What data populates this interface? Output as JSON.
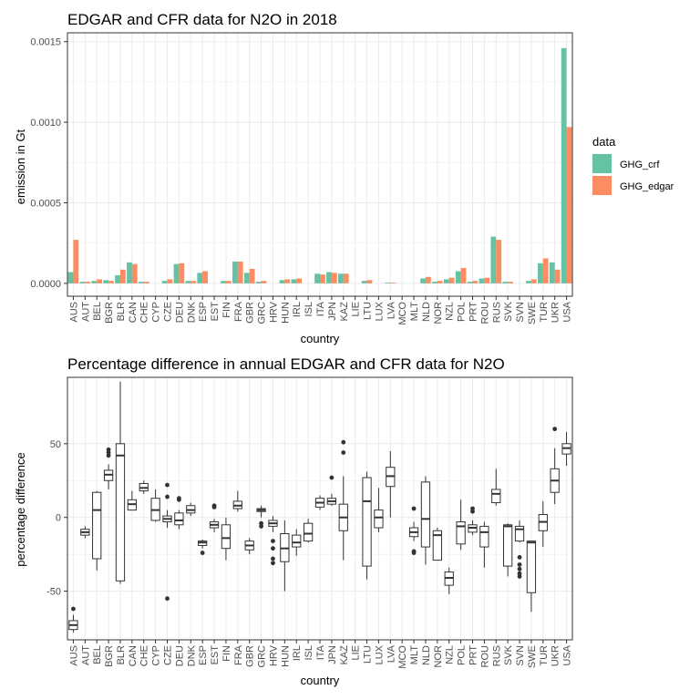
{
  "colors": {
    "ghg_crf": "#66c2a5",
    "ghg_edgar": "#fc8d62",
    "grid": "#ebebeb",
    "panel_border": "#333333",
    "box_stroke": "#333333"
  },
  "chart_data": [
    {
      "type": "bar",
      "title": "EDGAR and CFR data for N2O in 2018",
      "xlabel": "country",
      "ylabel": "emission in Gt",
      "ylim": [
        -8e-05,
        0.001555
      ],
      "yticks": [
        0.0,
        0.0005,
        0.001,
        0.0015
      ],
      "ytick_labels": [
        "0.0000",
        "0.0005",
        "0.0010",
        "0.0015"
      ],
      "grid": true,
      "legend_position": "right",
      "legend_title": "data",
      "categories": [
        "AUS",
        "AUT",
        "BEL",
        "BGR",
        "BLR",
        "CAN",
        "CHE",
        "CYP",
        "CZE",
        "DEU",
        "DNK",
        "ESP",
        "EST",
        "FIN",
        "FRA",
        "GBR",
        "GRC",
        "HRV",
        "HUN",
        "IRL",
        "ISL",
        "ITA",
        "JPN",
        "KAZ",
        "LIE",
        "LTU",
        "LUX",
        "LVA",
        "MCO",
        "MLT",
        "NLD",
        "NOR",
        "NZL",
        "POL",
        "PRT",
        "ROU",
        "RUS",
        "SVK",
        "SVN",
        "SWE",
        "TUR",
        "UKR",
        "USA"
      ],
      "series": [
        {
          "name": "GHG_crf",
          "color_key": "ghg_crf",
          "values": [
            7e-05,
            1e-05,
            1.5e-05,
            2e-05,
            5e-05,
            0.00013,
            1e-05,
            0.0,
            1.5e-05,
            0.00012,
            1.5e-05,
            6.5e-05,
            0.0,
            1.5e-05,
            0.000135,
            6.5e-05,
            1e-05,
            0.0,
            2e-05,
            2.5e-05,
            0.0,
            6e-05,
            7e-05,
            6e-05,
            0.0,
            1.5e-05,
            0.0,
            5e-06,
            0.0,
            0.0,
            3e-05,
            1e-05,
            2.5e-05,
            7.5e-05,
            1e-05,
            3e-05,
            0.00029,
            1e-05,
            0.0,
            1.5e-05,
            0.000125,
            0.00013,
            0.00146
          ]
        },
        {
          "name": "GHG_edgar",
          "color_key": "ghg_edgar",
          "values": [
            0.00027,
            1e-05,
            2.5e-05,
            1.5e-05,
            8.5e-05,
            0.00012,
            1e-05,
            0.0,
            2.5e-05,
            0.000125,
            1.5e-05,
            7.5e-05,
            0.0,
            1.5e-05,
            0.000135,
            9e-05,
            1.5e-05,
            0.0,
            2.5e-05,
            3e-05,
            0.0,
            5.5e-05,
            6.5e-05,
            6e-05,
            0.0,
            2e-05,
            0.0,
            5e-06,
            0.0,
            0.0,
            4e-05,
            1.5e-05,
            3.5e-05,
            9.5e-05,
            1.5e-05,
            3.5e-05,
            0.00027,
            1e-05,
            0.0,
            2.5e-05,
            0.000155,
            8.5e-05,
            0.00097
          ]
        }
      ]
    },
    {
      "type": "box",
      "title": "Percentage difference in annual EDGAR and CFR data for N2O",
      "xlabel": "country",
      "ylabel": "percentage difference",
      "ylim": [
        -83,
        95
      ],
      "yticks": [
        -50,
        0,
        50
      ],
      "ytick_labels": [
        "-50",
        "0",
        "50"
      ],
      "grid": true,
      "categories": [
        "AUS",
        "AUT",
        "BEL",
        "BGR",
        "BLR",
        "CAN",
        "CHE",
        "CYP",
        "CZE",
        "DEU",
        "DNK",
        "ESP",
        "EST",
        "FIN",
        "FRA",
        "GBR",
        "GRC",
        "HRV",
        "HUN",
        "IRL",
        "ISL",
        "ITA",
        "JPN",
        "KAZ",
        "LIE",
        "LTU",
        "LUX",
        "LVA",
        "MCO",
        "MLT",
        "NLD",
        "NOR",
        "NZL",
        "POL",
        "PRT",
        "ROU",
        "RUS",
        "SVK",
        "SVN",
        "SWE",
        "TUR",
        "UKR",
        "USA"
      ],
      "boxes": [
        {
          "min": -78,
          "q1": -76,
          "median": -73,
          "q3": -70,
          "max": -66,
          "outliers": [
            -62
          ]
        },
        {
          "min": -14,
          "q1": -12,
          "median": -10,
          "q3": -8,
          "max": -6,
          "outliers": []
        },
        {
          "min": -36,
          "q1": -28,
          "median": 5,
          "q3": 17,
          "max": 18,
          "outliers": []
        },
        {
          "min": 19,
          "q1": 25,
          "median": 29,
          "q3": 32,
          "max": 36,
          "outliers": [
            42,
            44,
            46
          ]
        },
        {
          "min": -45,
          "q1": -43,
          "median": 42,
          "q3": 50,
          "max": 92,
          "outliers": []
        },
        {
          "min": 5,
          "q1": 5,
          "median": 9,
          "q3": 12,
          "max": 18,
          "outliers": []
        },
        {
          "min": 16,
          "q1": 18,
          "median": 20,
          "q3": 23,
          "max": 25,
          "outliers": []
        },
        {
          "min": -3,
          "q1": -2,
          "median": 5,
          "q3": 13,
          "max": 19,
          "outliers": []
        },
        {
          "min": -7,
          "q1": -3,
          "median": -1,
          "q3": 1,
          "max": 5,
          "outliers": [
            -55,
            22,
            14
          ]
        },
        {
          "min": -8,
          "q1": -5,
          "median": -2,
          "q3": 3,
          "max": 5,
          "outliers": [
            12,
            13
          ]
        },
        {
          "min": 1,
          "q1": 3,
          "median": 5,
          "q3": 8,
          "max": 10,
          "outliers": []
        },
        {
          "min": -21,
          "q1": -19,
          "median": -17,
          "q3": -16,
          "max": -15,
          "outliers": [
            -24
          ]
        },
        {
          "min": -10,
          "q1": -7,
          "median": -5,
          "q3": -3,
          "max": -1,
          "outliers": [
            7,
            8
          ]
        },
        {
          "min": -29,
          "q1": -21,
          "median": -14,
          "q3": -5,
          "max": 0,
          "outliers": []
        },
        {
          "min": 4,
          "q1": 6,
          "median": 8,
          "q3": 11,
          "max": 18,
          "outliers": []
        },
        {
          "min": -25,
          "q1": -22,
          "median": -19,
          "q3": -16,
          "max": -14,
          "outliers": []
        },
        {
          "min": 0,
          "q1": 4,
          "median": 5,
          "q3": 6,
          "max": 8,
          "outliers": [
            -4,
            -6
          ]
        },
        {
          "min": -10,
          "q1": -6,
          "median": -4,
          "q3": -2,
          "max": 1,
          "outliers": [
            -16,
            -21,
            -28,
            -31
          ]
        },
        {
          "min": -50,
          "q1": -30,
          "median": -21,
          "q3": -11,
          "max": -2,
          "outliers": []
        },
        {
          "min": -26,
          "q1": -20,
          "median": -17,
          "q3": -12,
          "max": -8,
          "outliers": []
        },
        {
          "min": -17,
          "q1": -16,
          "median": -11,
          "q3": -4,
          "max": -1,
          "outliers": []
        },
        {
          "min": 5,
          "q1": 7,
          "median": 10,
          "q3": 13,
          "max": 15,
          "outliers": []
        },
        {
          "min": 8,
          "q1": 9,
          "median": 11,
          "q3": 13,
          "max": 16,
          "outliers": [
            27
          ]
        },
        {
          "min": -29,
          "q1": -9,
          "median": 0,
          "q3": 9,
          "max": 28,
          "outliers": [
            44,
            51
          ]
        },
        {
          "min": null,
          "q1": null,
          "median": null,
          "q3": null,
          "max": null,
          "outliers": []
        },
        {
          "min": -42,
          "q1": -33,
          "median": 11,
          "q3": 27,
          "max": 31,
          "outliers": []
        },
        {
          "min": -10,
          "q1": -7,
          "median": 0,
          "q3": 5,
          "max": 20,
          "outliers": []
        },
        {
          "min": 0,
          "q1": 21,
          "median": 28,
          "q3": 34,
          "max": 45,
          "outliers": []
        },
        {
          "min": null,
          "q1": null,
          "median": null,
          "q3": null,
          "max": null,
          "outliers": []
        },
        {
          "min": -16,
          "q1": -13,
          "median": -10,
          "q3": -7,
          "max": -3,
          "outliers": [
            -23,
            -24,
            6
          ]
        },
        {
          "min": -32,
          "q1": -20,
          "median": -1,
          "q3": 24,
          "max": 28,
          "outliers": []
        },
        {
          "min": -29,
          "q1": -29,
          "median": -12,
          "q3": -9,
          "max": -7,
          "outliers": []
        },
        {
          "min": -52,
          "q1": -46,
          "median": -41,
          "q3": -37,
          "max": -34,
          "outliers": []
        },
        {
          "min": -22,
          "q1": -18,
          "median": -6,
          "q3": -3,
          "max": 12,
          "outliers": []
        },
        {
          "min": -12,
          "q1": -10,
          "median": -7,
          "q3": -5,
          "max": -2,
          "outliers": [
            4,
            6
          ]
        },
        {
          "min": -34,
          "q1": -20,
          "median": -10,
          "q3": -6,
          "max": -3,
          "outliers": []
        },
        {
          "min": 8,
          "q1": 10,
          "median": 16,
          "q3": 19,
          "max": 33,
          "outliers": []
        },
        {
          "min": -40,
          "q1": -33,
          "median": -6,
          "q3": -5,
          "max": -4,
          "outliers": []
        },
        {
          "min": -17,
          "q1": -16,
          "median": -8,
          "q3": -6,
          "max": -2,
          "outliers": [
            -27,
            -32,
            -35,
            -38,
            -40
          ]
        },
        {
          "min": -64,
          "q1": -51,
          "median": -17,
          "q3": -16,
          "max": -16,
          "outliers": []
        },
        {
          "min": -20,
          "q1": -9,
          "median": -3,
          "q3": 2,
          "max": 11,
          "outliers": []
        },
        {
          "min": 9,
          "q1": 17,
          "median": 25,
          "q3": 33,
          "max": 47,
          "outliers": [
            60
          ]
        },
        {
          "min": 35,
          "q1": 43,
          "median": 47,
          "q3": 50,
          "max": 58,
          "outliers": []
        }
      ]
    }
  ]
}
